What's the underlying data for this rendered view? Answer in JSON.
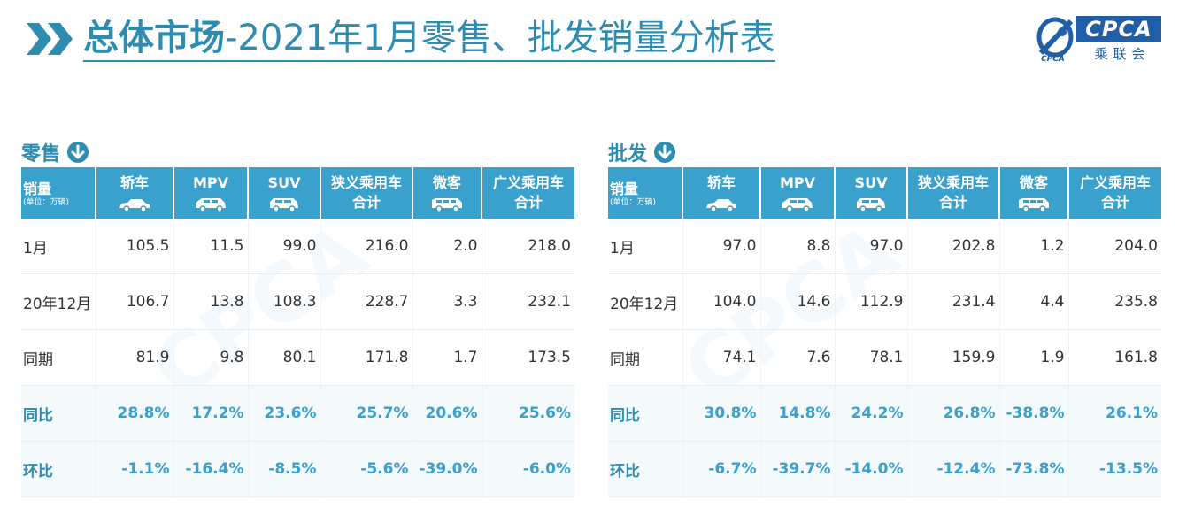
{
  "header": {
    "title_strong": "总体市场",
    "title_rest": "-2021年1月零售、批发销量分析表"
  },
  "logo": {
    "main": "CPCA",
    "sub": "乘联会",
    "small": "CPCA"
  },
  "columns": {
    "first_main": "销量",
    "first_unit": "(单位：万辆)",
    "cols": [
      {
        "label": "轿车",
        "icon": "sedan-icon"
      },
      {
        "label": "MPV",
        "icon": "mpv-icon"
      },
      {
        "label": "SUV",
        "icon": "suv-icon"
      },
      {
        "label1": "狭义乘用车",
        "label2": "合计"
      },
      {
        "label": "微客",
        "icon": "minivan-icon"
      },
      {
        "label1": "广义乘用车",
        "label2": "合计"
      }
    ]
  },
  "retail": {
    "title": "零售",
    "rows": [
      {
        "label": "1月",
        "values": [
          "105.5",
          "11.5",
          "99.0",
          "216.0",
          "2.0",
          "218.0"
        ]
      },
      {
        "label": "20年12月",
        "values": [
          "106.7",
          "13.8",
          "108.3",
          "228.7",
          "3.3",
          "232.1"
        ]
      },
      {
        "label": "同期",
        "values": [
          "81.9",
          "9.8",
          "80.1",
          "171.8",
          "1.7",
          "173.5"
        ]
      },
      {
        "label": "同比",
        "values": [
          "28.8%",
          "17.2%",
          "23.6%",
          "25.7%",
          "20.6%",
          "25.6%"
        ]
      },
      {
        "label": "环比",
        "values": [
          "-1.1%",
          "-16.4%",
          "-8.5%",
          "-5.6%",
          "-39.0%",
          "-6.0%"
        ]
      }
    ]
  },
  "wholesale": {
    "title": "批发",
    "rows": [
      {
        "label": "1月",
        "values": [
          "97.0",
          "8.8",
          "97.0",
          "202.8",
          "1.2",
          "204.0"
        ]
      },
      {
        "label": "20年12月",
        "values": [
          "104.0",
          "14.6",
          "112.9",
          "231.4",
          "4.4",
          "235.8"
        ]
      },
      {
        "label": "同期",
        "values": [
          "74.1",
          "7.6",
          "78.1",
          "159.9",
          "1.9",
          "161.8"
        ]
      },
      {
        "label": "同比",
        "values": [
          "30.8%",
          "14.8%",
          "24.2%",
          "26.8%",
          "-38.8%",
          "26.1%"
        ]
      },
      {
        "label": "环比",
        "values": [
          "-6.7%",
          "-39.7%",
          "-14.0%",
          "-12.4%",
          "-73.8%",
          "-13.5%"
        ]
      }
    ]
  },
  "colors": {
    "accent": "#2e8cb0",
    "header_bg": "#3aa0cc",
    "logo_blue": "#1e5fa8"
  }
}
